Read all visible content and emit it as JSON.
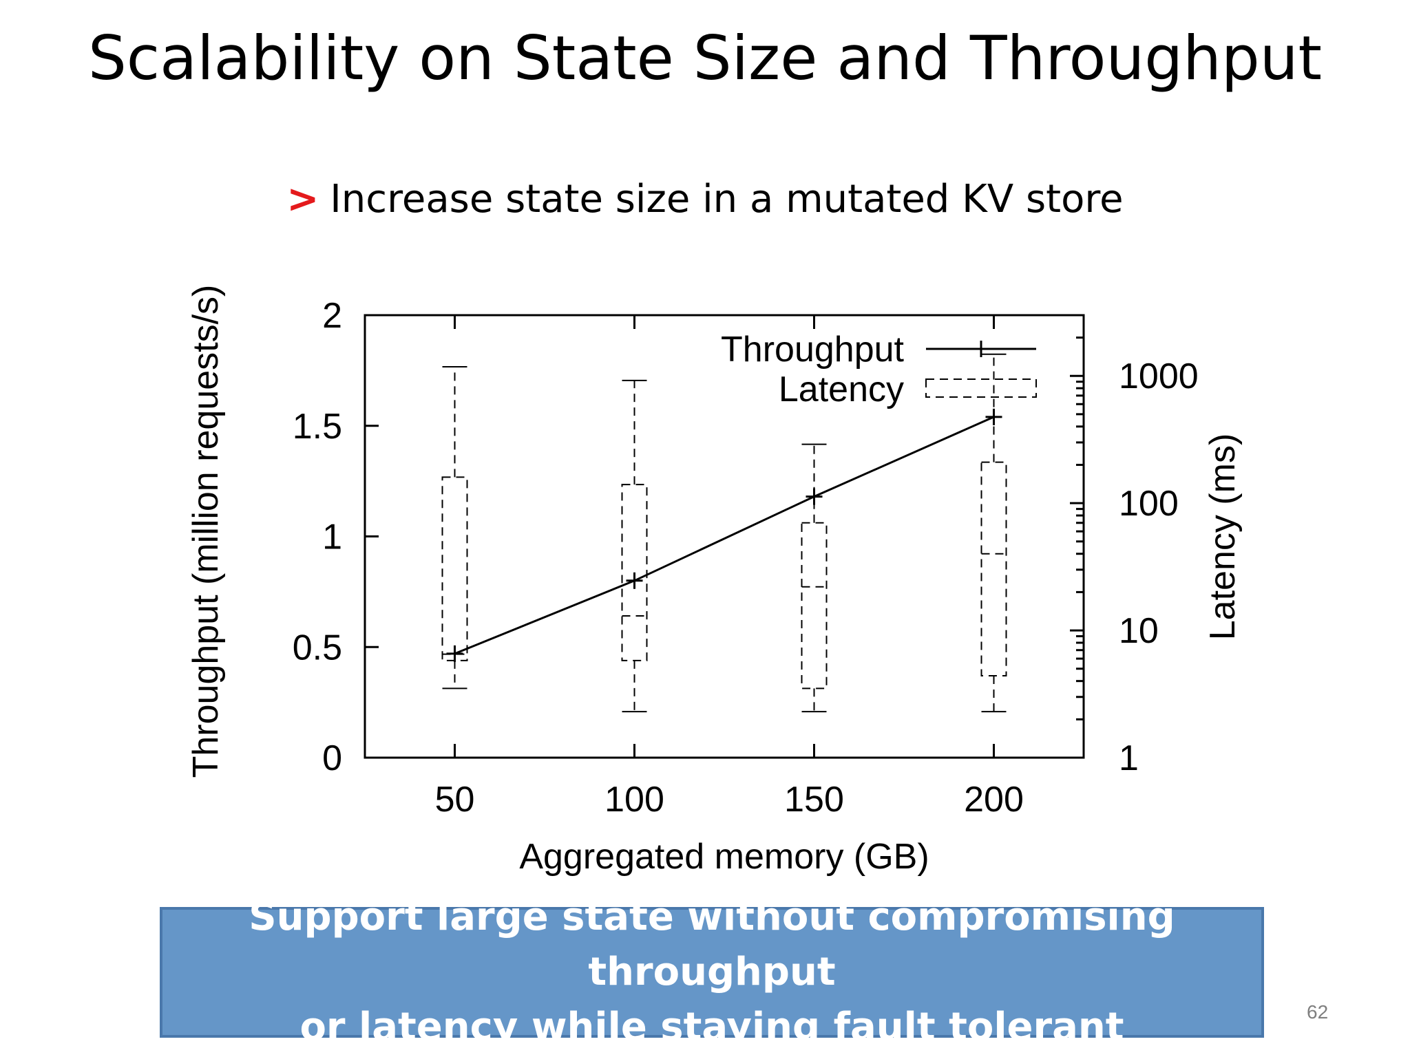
{
  "slide": {
    "title": "Scalability on State Size and Throughput",
    "bullet_marker": ">",
    "bullet_text": "Increase state size in a mutated KV store",
    "callout_line1": "Support large state without compromising throughput",
    "callout_line2": "or latency while staying fault tolerant",
    "page_number": "62"
  },
  "chart_data": {
    "type": "line",
    "xlabel": "Aggregated memory (GB)",
    "ylabel": "Throughput (million requests/s)",
    "y2label": "Latency (ms)",
    "x_ticks": [
      "50",
      "100",
      "150",
      "200"
    ],
    "y_ticks": [
      "0",
      "0.5",
      "1",
      "1.5",
      "2"
    ],
    "y2_ticks": [
      "1",
      "10",
      "100",
      "1000"
    ],
    "xlim": [
      25,
      225
    ],
    "ylim": [
      0,
      2
    ],
    "y2lim": [
      1,
      3000
    ],
    "y2_scale": "log",
    "legend": [
      "Throughput",
      "Latency"
    ],
    "legend_position": "top-right",
    "grid": false,
    "series": [
      {
        "name": "Throughput",
        "x": [
          50,
          100,
          150,
          200
        ],
        "values": [
          0.47,
          0.8,
          1.18,
          1.54
        ]
      },
      {
        "name": "Latency",
        "kind": "box",
        "x": [
          50,
          100,
          150,
          200
        ],
        "whisker_low": [
          3.5,
          2.3,
          2.3,
          2.3
        ],
        "q1": [
          5.8,
          5.8,
          3.5,
          4.4
        ],
        "median": [
          6.5,
          13,
          22,
          40
        ],
        "q3": [
          160,
          140,
          70,
          210
        ],
        "whisker_high": [
          1180,
          920,
          290,
          1480
        ]
      }
    ]
  }
}
